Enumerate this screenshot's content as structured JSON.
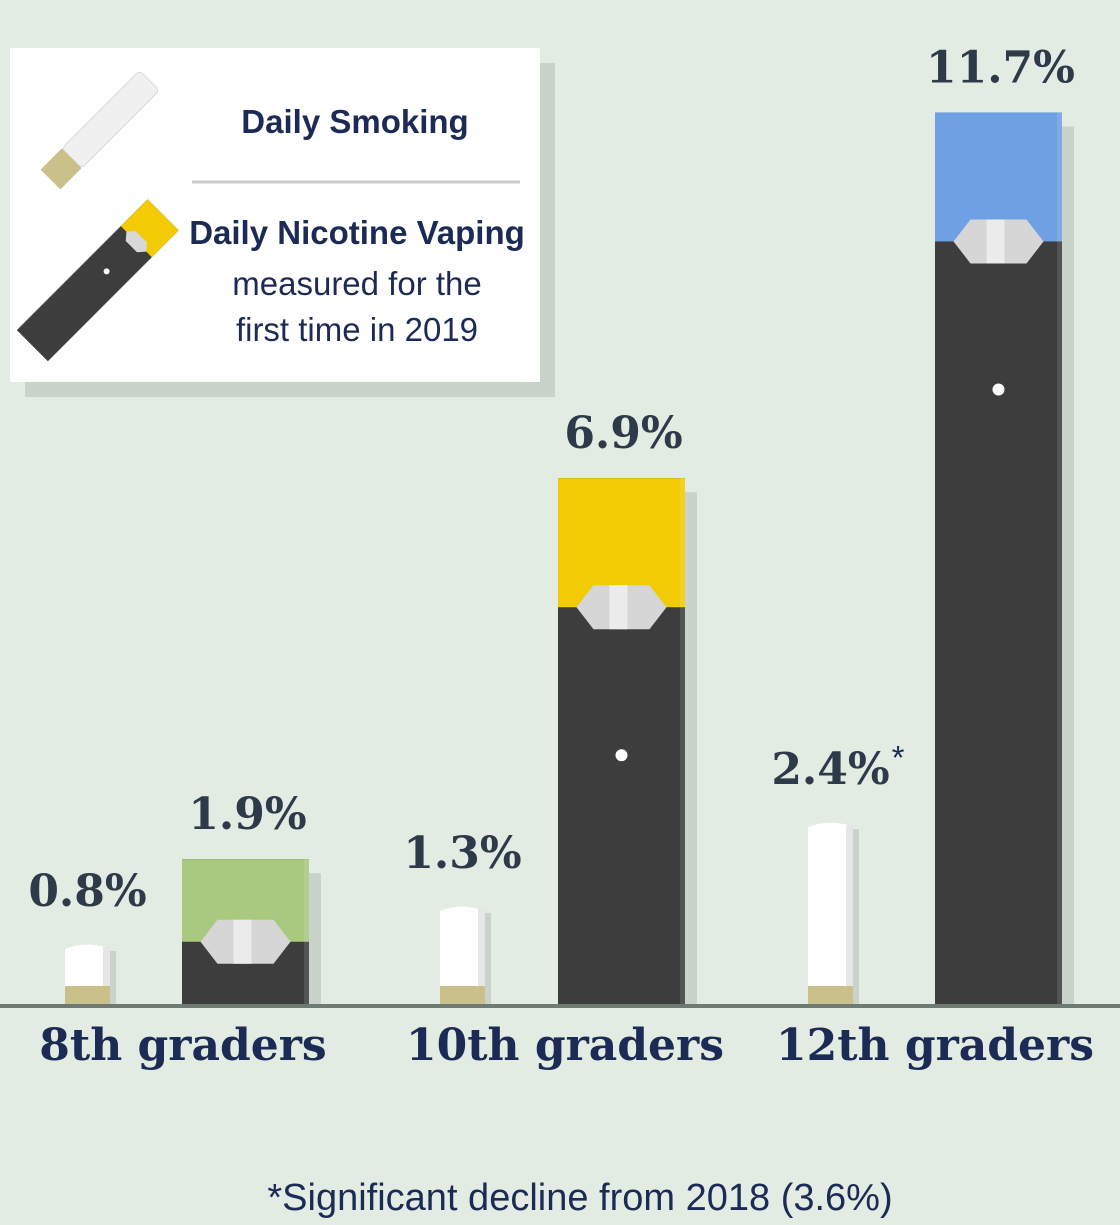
{
  "chart_data": {
    "type": "bar",
    "categories": [
      "8th graders",
      "10th graders",
      "12th graders"
    ],
    "series": [
      {
        "name": "Daily Smoking",
        "color": "#ffffff",
        "values": [
          0.8,
          1.3,
          2.4
        ],
        "value_labels": [
          "0.8%",
          "1.3%",
          "2.4%"
        ]
      },
      {
        "name": "Daily Nicotine Vaping",
        "note": "measured for the first time in 2019",
        "color": "#3d3d3d",
        "colors": [
          "#a9c97e",
          "#f2cb05",
          "#6fa0e3"
        ],
        "values": [
          1.9,
          6.9,
          11.7
        ],
        "value_labels": [
          "1.9%",
          "6.9%",
          "11.7%"
        ]
      }
    ],
    "note_marker": "*",
    "footnote": "*Significant decline from 2018 (3.6%)"
  }
}
